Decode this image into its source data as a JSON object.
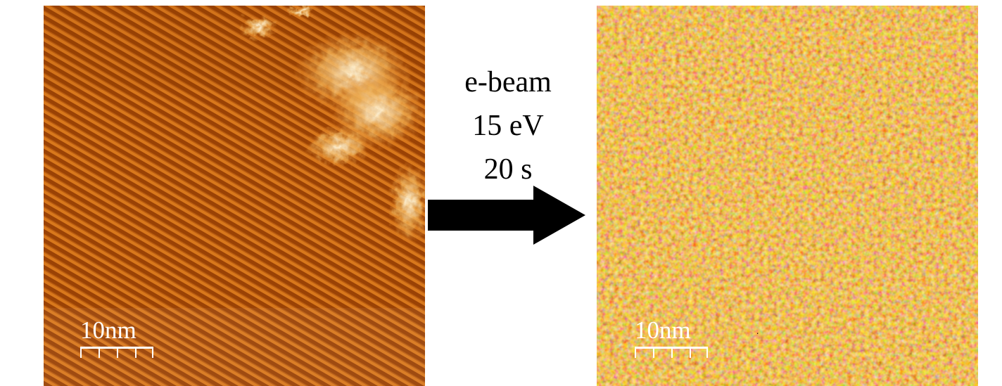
{
  "before_image": {
    "scalebar_label": "10nm"
  },
  "process": {
    "line1": "e-beam",
    "line2": "15 eV",
    "line3": "20 s"
  },
  "after_image": {
    "scalebar_label": "10nm"
  },
  "colors": {
    "afm_dark": "#6e2400",
    "afm_mid": "#b85a10",
    "afm_light": "#f2b04a",
    "afm_highlight": "#fff0c8",
    "arrow": "#000000",
    "text": "#000000"
  }
}
